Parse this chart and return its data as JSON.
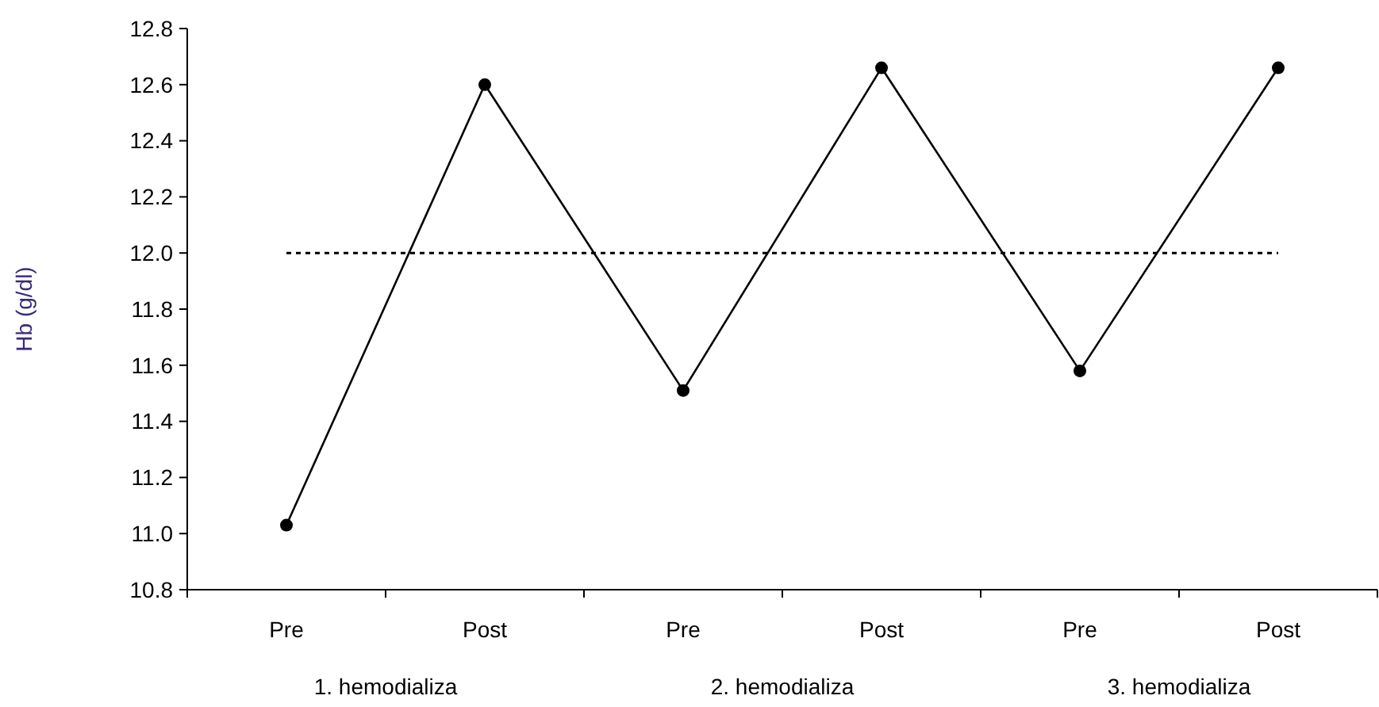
{
  "chart_data": {
    "type": "line",
    "ylabel": "Hb (g/dl)",
    "categories": [
      "Pre",
      "Post",
      "Pre",
      "Post",
      "Pre",
      "Post"
    ],
    "series": [
      {
        "color": "#000000",
        "values": [
          11.03,
          12.6,
          11.51,
          12.66,
          11.58,
          12.66
        ]
      }
    ],
    "ylim": [
      10.8,
      12.8
    ],
    "yticks": [
      {
        "value": 10.8,
        "label": "10.8"
      },
      {
        "value": 11.0,
        "label": "11.0"
      },
      {
        "value": 11.2,
        "label": "11.2"
      },
      {
        "value": 11.4,
        "label": "11.4"
      },
      {
        "value": 11.6,
        "label": "11.6"
      },
      {
        "value": 11.8,
        "label": "11.8"
      },
      {
        "value": 12.0,
        "label": "12.0"
      },
      {
        "value": 12.2,
        "label": "12.2"
      },
      {
        "value": 12.4,
        "label": "12.4"
      },
      {
        "value": 12.6,
        "label": "12.6"
      },
      {
        "value": 12.8,
        "label": "12.8"
      }
    ],
    "ref_lines": [
      {
        "axis": "y",
        "value": 12.0,
        "line_style": "dotted",
        "color": "#000000"
      }
    ],
    "annotations": [
      "1. hemodializa",
      "2. hemodializa",
      "3. hemodializa"
    ],
    "marker": "circle",
    "line_style": "solid"
  }
}
